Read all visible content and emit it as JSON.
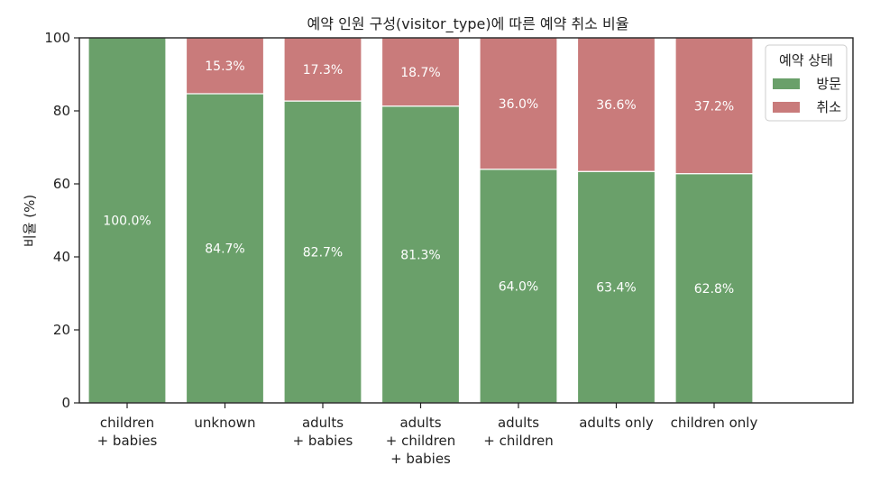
{
  "chart_data": {
    "type": "bar",
    "stacked": true,
    "title": "예약 인원 구성(visitor_type)에 따른 예약 취소 비율",
    "xlabel": "",
    "ylabel": "비율 (%)",
    "ylim": [
      0,
      100
    ],
    "yticks": [
      0,
      20,
      40,
      60,
      80,
      100
    ],
    "grid": false,
    "categories": [
      [
        "children",
        "+ babies"
      ],
      [
        "unknown"
      ],
      [
        "adults",
        "+ babies"
      ],
      [
        "adults",
        "+ children",
        "+ babies"
      ],
      [
        "adults",
        "+ children"
      ],
      [
        "adults only"
      ],
      [
        "children only"
      ]
    ],
    "series": [
      {
        "name": "방문",
        "color": "#6aa06a",
        "values": [
          100.0,
          84.7,
          82.7,
          81.3,
          64.0,
          63.4,
          62.8
        ],
        "labels": [
          "100.0%",
          "84.7%",
          "82.7%",
          "81.3%",
          "64.0%",
          "63.4%",
          "62.8%"
        ]
      },
      {
        "name": "취소",
        "color": "#c97b7b",
        "values": [
          0,
          15.3,
          17.3,
          18.7,
          36.0,
          36.6,
          37.2
        ],
        "labels": [
          "",
          "15.3%",
          "17.3%",
          "18.7%",
          "36.0%",
          "36.6%",
          "37.2%"
        ]
      }
    ],
    "legend": {
      "title": "예약 상태",
      "placement": "top-right"
    }
  }
}
